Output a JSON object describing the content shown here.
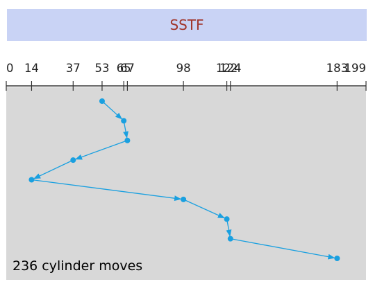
{
  "title": "SSTF",
  "caption": "236 cylinder moves",
  "colors": {
    "banner_bg": "#c9d3f5",
    "title_text": "#a0342a",
    "plot_bg": "#d8d8d8",
    "path": "#1aa0e0",
    "axis": "#333333"
  },
  "axis": {
    "min": 0,
    "max": 199,
    "ticks": [
      0,
      14,
      37,
      53,
      65,
      67,
      98,
      122,
      124,
      183,
      199
    ]
  },
  "request_sequence": [
    53,
    65,
    67,
    37,
    14,
    98,
    122,
    124,
    183
  ]
}
